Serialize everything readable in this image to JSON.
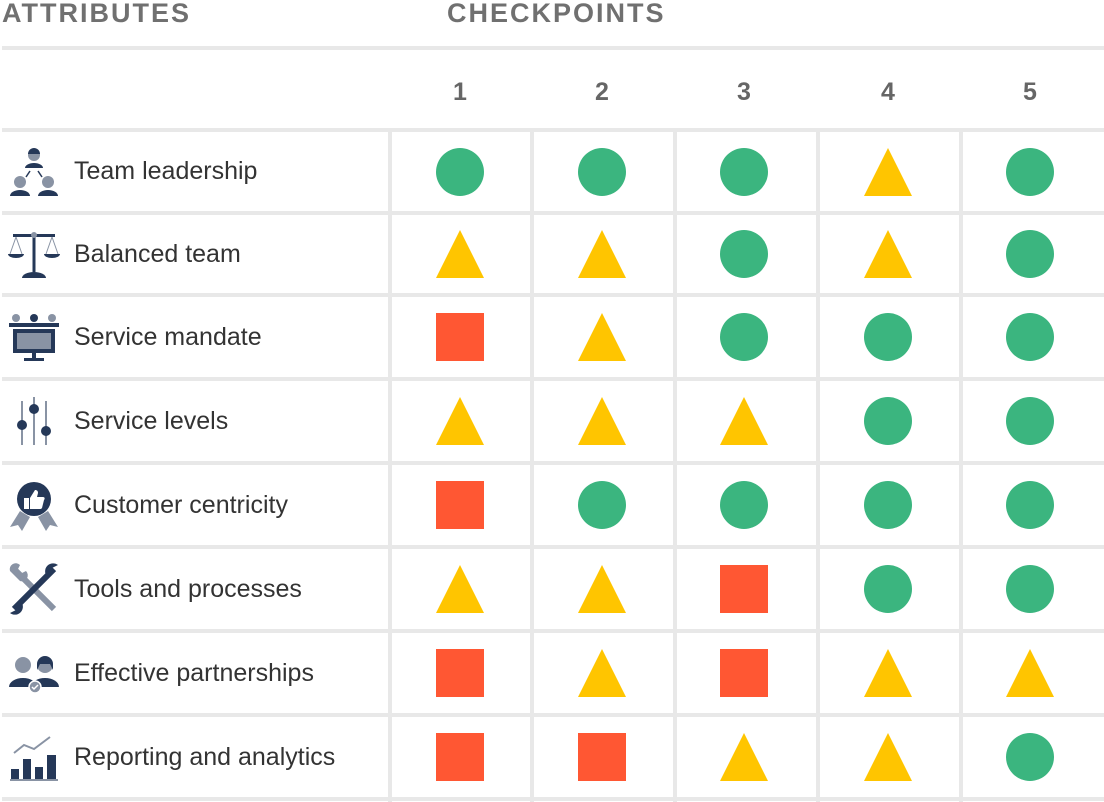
{
  "headers": {
    "attributes": "ATTRIBUTES",
    "checkpoints": "CHECKPOINTS"
  },
  "colors": {
    "green": "#3bb57f",
    "yellow": "#ffc500",
    "red": "#ff5733",
    "icon_dark": "#253858",
    "icon_light": "#8993a4"
  },
  "chart_data": {
    "type": "table",
    "columns": [
      "1",
      "2",
      "3",
      "4",
      "5"
    ],
    "legend_shapes": {
      "circle": "green",
      "triangle": "yellow",
      "square": "red"
    },
    "rows": [
      {
        "label": "Team leadership",
        "icon": "team-leadership-icon",
        "values": [
          "circle",
          "circle",
          "circle",
          "triangle",
          "circle"
        ]
      },
      {
        "label": "Balanced team",
        "icon": "scales-icon",
        "values": [
          "triangle",
          "triangle",
          "circle",
          "triangle",
          "circle"
        ]
      },
      {
        "label": "Service mandate",
        "icon": "service-desk-icon",
        "values": [
          "square",
          "triangle",
          "circle",
          "circle",
          "circle"
        ]
      },
      {
        "label": "Service levels",
        "icon": "sliders-icon",
        "values": [
          "triangle",
          "triangle",
          "triangle",
          "circle",
          "circle"
        ]
      },
      {
        "label": "Customer centricity",
        "icon": "thumbs-up-badge-icon",
        "values": [
          "square",
          "circle",
          "circle",
          "circle",
          "circle"
        ]
      },
      {
        "label": "Tools and processes",
        "icon": "wrench-icon",
        "values": [
          "triangle",
          "triangle",
          "square",
          "circle",
          "circle"
        ]
      },
      {
        "label": "Effective partnerships",
        "icon": "partners-icon",
        "values": [
          "square",
          "triangle",
          "square",
          "triangle",
          "triangle"
        ]
      },
      {
        "label": "Reporting and analytics",
        "icon": "bar-chart-icon",
        "values": [
          "square",
          "square",
          "triangle",
          "triangle",
          "circle"
        ]
      }
    ]
  }
}
